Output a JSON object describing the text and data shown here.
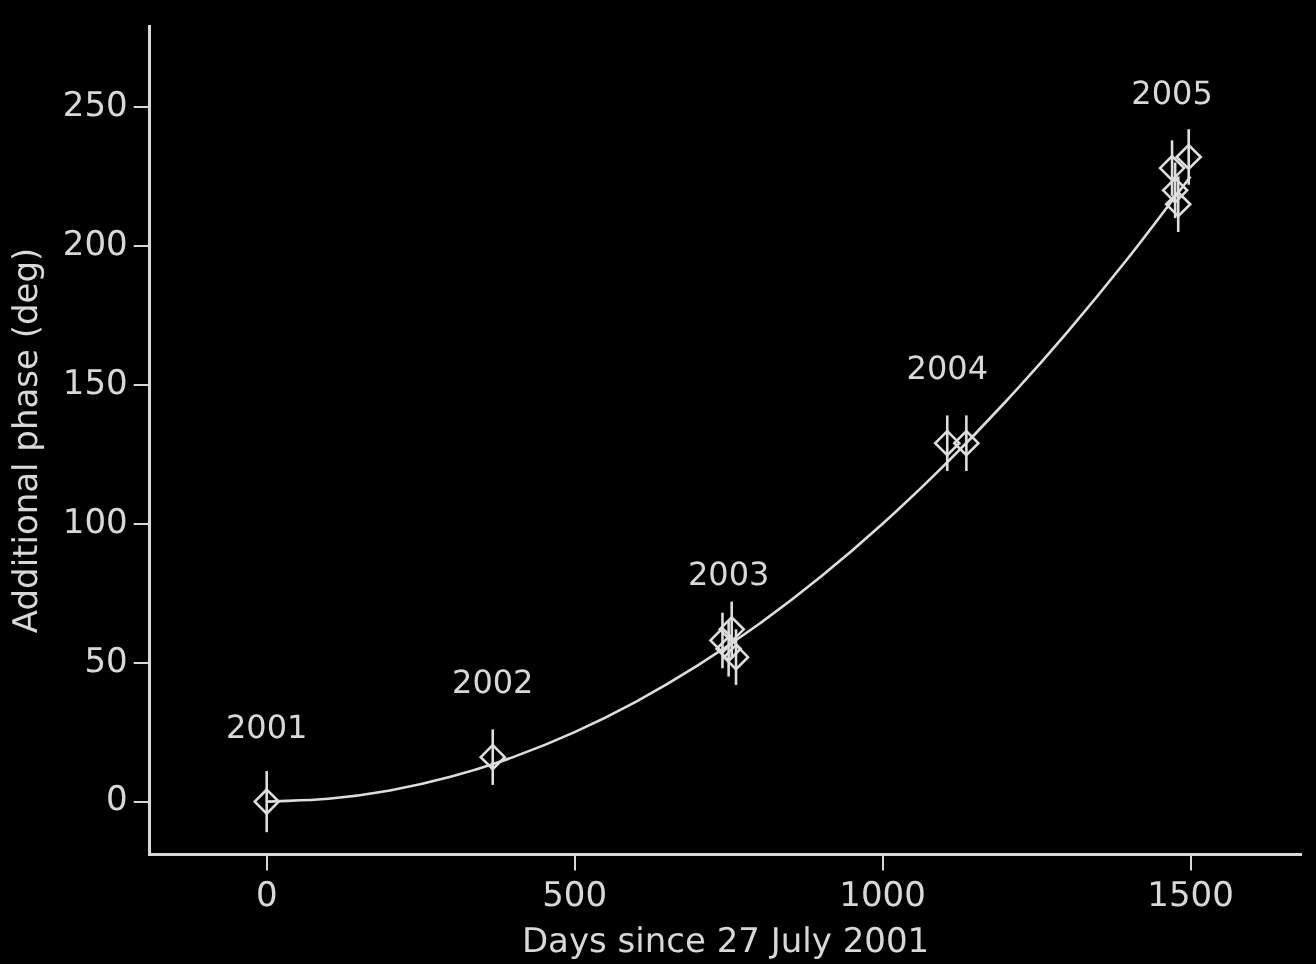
{
  "chart_data": {
    "type": "scatter",
    "xlabel": "Days since 27 July 2001",
    "ylabel": "Additional phase (deg)",
    "xlim": [
      -190,
      1680
    ],
    "ylim": [
      -19,
      279
    ],
    "xticks": [
      0,
      500,
      1000,
      1500
    ],
    "yticks": [
      0,
      50,
      100,
      150,
      200,
      250
    ],
    "grid": false,
    "legend": false,
    "marker": "diamond",
    "series": [
      {
        "color": "#dddddd",
        "x": [
          0,
          367,
          740,
          750,
          755,
          762,
          1105,
          1136,
          1470,
          1497,
          1475,
          1480
        ],
        "values": [
          0,
          16,
          58,
          55,
          62,
          52,
          129,
          129,
          228,
          232,
          220,
          215
        ],
        "errors": [
          11,
          10,
          10,
          10,
          10,
          10,
          10,
          10,
          10,
          10,
          10,
          10
        ]
      },
      {
        "type": "line",
        "color": "#dddddd",
        "marker": "none",
        "x": [
          0,
          100,
          200,
          300,
          400,
          500,
          600,
          700,
          800,
          900,
          1000,
          1100,
          1200,
          1300,
          1400,
          1500
        ],
        "values": [
          0,
          1,
          4,
          9,
          16,
          25,
          36,
          49,
          64,
          81,
          100,
          121,
          144,
          169,
          196,
          225
        ]
      }
    ],
    "annotations": [
      {
        "text": "2001",
        "x": 0,
        "y": 0
      },
      {
        "text": "2002",
        "x": 367,
        "y": 16
      },
      {
        "text": "2003",
        "x": 750,
        "y": 55
      },
      {
        "text": "2004",
        "x": 1105,
        "y": 129
      },
      {
        "text": "2005",
        "x": 1470,
        "y": 228
      }
    ]
  }
}
